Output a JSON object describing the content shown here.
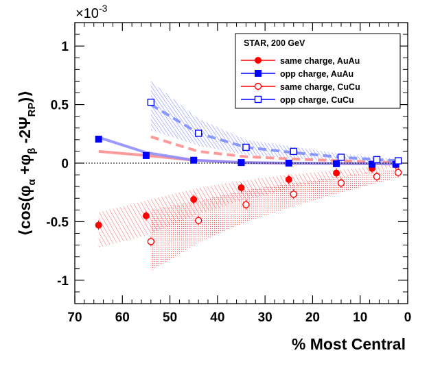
{
  "chart_data": {
    "type": "scatter",
    "title": "",
    "xlabel": "% Most Central",
    "ylabel": "⟨cos(φα +φβ -2ΨRP)⟩",
    "ylabel_parts": {
      "open": "⟨cos(φ",
      "sub1": "α",
      "mid": " +φ",
      "sub2": "β",
      "tail": " -2Ψ",
      "sub3": "RP",
      "close": ")⟩"
    },
    "y_scale_label": {
      "base": "×10",
      "exp": "-3"
    },
    "xlim": [
      70,
      0
    ],
    "ylim": [
      -1.2,
      1.2
    ],
    "x_ticks": [
      "70",
      "60",
      "50",
      "40",
      "30",
      "20",
      "10",
      "0"
    ],
    "x_tick_values": [
      70,
      60,
      50,
      40,
      30,
      20,
      10,
      0
    ],
    "y_ticks": [
      "1",
      "0.5",
      "0",
      "-0.5",
      "-1"
    ],
    "y_tick_values": [
      1,
      0.5,
      0,
      -0.5,
      -1
    ],
    "legend": {
      "header": "STAR,  200 GeV",
      "placement": "top-right",
      "entries": [
        {
          "label": "same charge, AuAu",
          "color": "#ff0000",
          "marker": "filled-circle"
        },
        {
          "label": "opp charge, AuAu",
          "color": "#0000ff",
          "marker": "filled-square"
        },
        {
          "label": "same charge, CuCu",
          "color": "#ff0000",
          "marker": "open-circle"
        },
        {
          "label": "opp charge, CuCu",
          "color": "#0000ff",
          "marker": "open-square"
        }
      ]
    },
    "series": [
      {
        "name": "same charge, AuAu",
        "color": "#ff0000",
        "marker": "filled-circle",
        "x": [
          65,
          55,
          45,
          35,
          25,
          15,
          7.5,
          2.5
        ],
        "y": [
          -0.53,
          -0.45,
          -0.31,
          -0.21,
          -0.14,
          -0.085,
          -0.045,
          -0.015
        ]
      },
      {
        "name": "opp charge, AuAu",
        "color": "#0000ff",
        "marker": "filled-square",
        "x": [
          65,
          55,
          45,
          35,
          25,
          15,
          7.5,
          2.5
        ],
        "y": [
          0.205,
          0.065,
          0.025,
          0.005,
          0.0,
          -0.005,
          -0.01,
          -0.01
        ]
      },
      {
        "name": "same charge, CuCu",
        "color": "#ff0000",
        "marker": "open-circle",
        "x": [
          54,
          44,
          34,
          24,
          14,
          6.5,
          2
        ],
        "y": [
          -0.67,
          -0.49,
          -0.355,
          -0.265,
          -0.17,
          -0.115,
          -0.08
        ]
      },
      {
        "name": "opp charge, CuCu",
        "color": "#0000ff",
        "marker": "open-square",
        "x": [
          54,
          44,
          34,
          24,
          14,
          6.5,
          2
        ],
        "y": [
          0.52,
          0.255,
          0.135,
          0.1,
          0.05,
          0.03,
          0.02
        ]
      }
    ],
    "systematic_bands": [
      {
        "name": "same charge, AuAu band",
        "color": "#ff6666",
        "pattern": "hatch",
        "x": [
          65,
          55,
          45,
          35,
          25,
          15,
          7.5,
          2.5
        ],
        "lo": [
          -0.72,
          -0.62,
          -0.45,
          -0.32,
          -0.22,
          -0.14,
          -0.08,
          -0.03
        ],
        "hi": [
          -0.42,
          -0.32,
          -0.22,
          -0.15,
          -0.1,
          -0.06,
          -0.03,
          -0.005
        ]
      },
      {
        "name": "same charge, CuCu band",
        "color": "#ff6666",
        "pattern": "dots",
        "x": [
          54,
          44,
          34,
          24,
          14,
          6.5,
          2
        ],
        "lo": [
          -0.92,
          -0.68,
          -0.5,
          -0.37,
          -0.25,
          -0.17,
          -0.12
        ],
        "hi": [
          -0.4,
          -0.32,
          -0.23,
          -0.17,
          -0.11,
          -0.07,
          -0.05
        ]
      },
      {
        "name": "opp charge, CuCu band",
        "color": "#6677ff",
        "pattern": "hatch",
        "x": [
          54,
          44,
          34,
          24,
          14,
          6.5,
          2
        ],
        "lo": [
          0.28,
          0.15,
          0.07,
          0.04,
          0.01,
          0.0,
          0.0
        ],
        "hi": [
          0.7,
          0.38,
          0.2,
          0.14,
          0.08,
          0.05,
          0.04
        ]
      }
    ],
    "reference_curves": [
      {
        "name": "same charge, CuCu reference",
        "color": "#ff8888",
        "style": "dashed",
        "x": [
          54,
          44,
          34,
          24,
          14,
          6.5,
          2
        ],
        "y": [
          0.225,
          0.1,
          0.055,
          0.035,
          0.02,
          0.01,
          0.005
        ]
      },
      {
        "name": "opp charge, CuCu reference",
        "color": "#7788ff",
        "style": "dashed",
        "x": [
          54,
          44,
          34,
          24,
          14,
          6.5,
          2
        ],
        "y": [
          0.5,
          0.255,
          0.135,
          0.09,
          0.05,
          0.03,
          0.02
        ]
      },
      {
        "name": "same charge, AuAu reference",
        "color": "#ff8888",
        "style": "solid",
        "x": [
          65,
          55,
          45,
          35,
          25,
          15,
          7.5,
          2.5
        ],
        "y": [
          0.1,
          0.065,
          0.025,
          0.005,
          -0.002,
          -0.004,
          -0.006,
          -0.008
        ]
      },
      {
        "name": "opp charge, AuAu reference",
        "color": "#8888ff",
        "style": "solid",
        "x": [
          65,
          55,
          45,
          35,
          25,
          15,
          7.5,
          2.5
        ],
        "y": [
          0.22,
          0.09,
          0.025,
          0.005,
          0.0,
          -0.004,
          -0.005,
          -0.006
        ]
      }
    ]
  }
}
